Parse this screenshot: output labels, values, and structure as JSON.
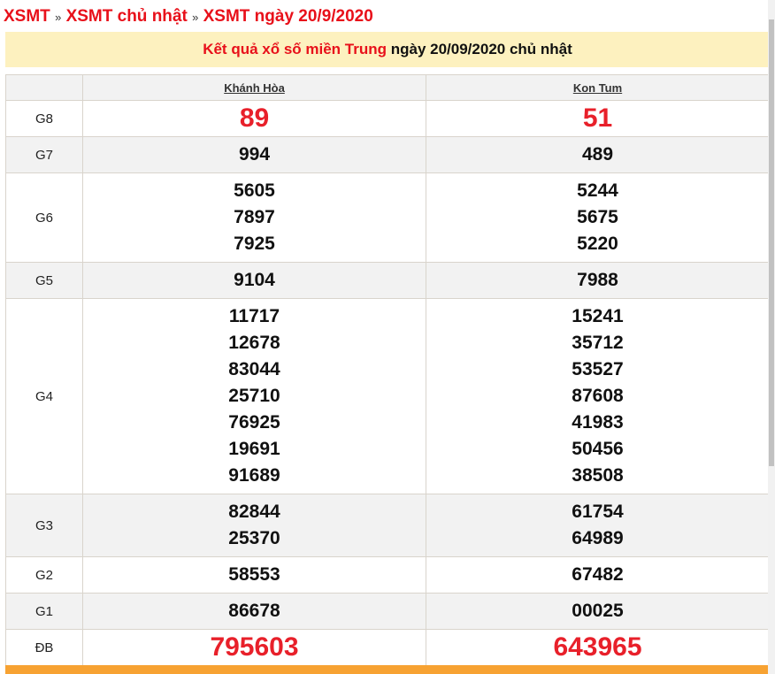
{
  "breadcrumb": [
    "XSMT",
    "XSMT chủ nhật",
    "XSMT ngày 20/9/2020"
  ],
  "breadcrumb_sep": "»",
  "banner": {
    "red": "Kết quả xổ số miền Trung",
    "rest": " ngày 20/09/2020 chủ nhật"
  },
  "columns": [
    "Khánh Hòa",
    "Kon Tum"
  ],
  "rows": [
    {
      "label": "G8",
      "big": true,
      "a": [
        "89"
      ],
      "b": [
        "51"
      ]
    },
    {
      "label": "G7",
      "a": [
        "994"
      ],
      "b": [
        "489"
      ]
    },
    {
      "label": "G6",
      "a": [
        "5605",
        "7897",
        "7925"
      ],
      "b": [
        "5244",
        "5675",
        "5220"
      ]
    },
    {
      "label": "G5",
      "a": [
        "9104"
      ],
      "b": [
        "7988"
      ]
    },
    {
      "label": "G4",
      "a": [
        "11717",
        "12678",
        "83044",
        "25710",
        "76925",
        "19691",
        "91689"
      ],
      "b": [
        "15241",
        "35712",
        "53527",
        "87608",
        "41983",
        "50456",
        "38508"
      ]
    },
    {
      "label": "G3",
      "a": [
        "82844",
        "25370"
      ],
      "b": [
        "61754",
        "64989"
      ]
    },
    {
      "label": "G2",
      "a": [
        "58553"
      ],
      "b": [
        "67482"
      ]
    },
    {
      "label": "G1",
      "a": [
        "86678"
      ],
      "b": [
        "00025"
      ]
    },
    {
      "label": "ĐB",
      "big": true,
      "a": [
        "795603"
      ],
      "b": [
        "643965"
      ]
    }
  ],
  "colors": {
    "accent": "#e8101a",
    "banner_bg": "#fdf1bf",
    "footer_bar": "#f7a232"
  }
}
